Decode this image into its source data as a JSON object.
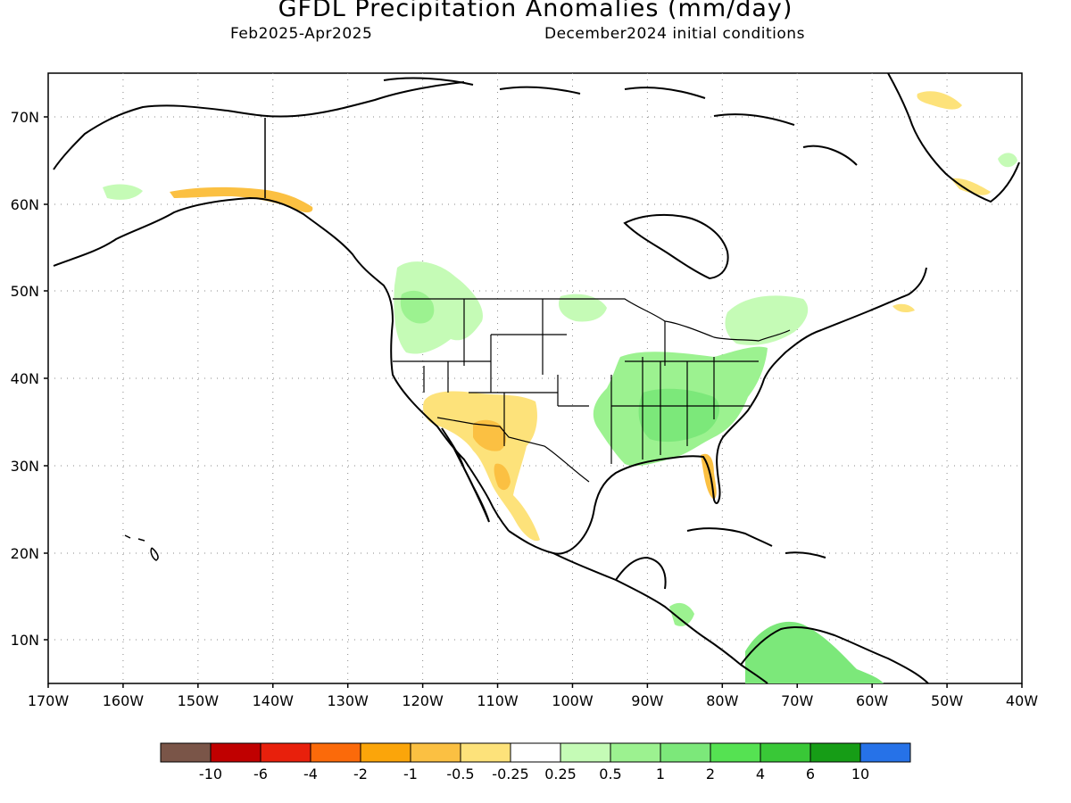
{
  "title": "GFDL Precipitation Anomalies (mm/day)",
  "period": "Feb2025-Apr2025",
  "init": "December2024 initial conditions",
  "lat_labels": [
    "70N",
    "60N",
    "50N",
    "40N",
    "30N",
    "20N",
    "10N"
  ],
  "lon_labels": [
    "170W",
    "160W",
    "150W",
    "140W",
    "130W",
    "120W",
    "110W",
    "100W",
    "90W",
    "80W",
    "70W",
    "60W",
    "50W",
    "40W"
  ],
  "legend": {
    "colors": [
      "#7a5548",
      "#c00000",
      "#e8200c",
      "#fb6a0a",
      "#fba50a",
      "#fbc042",
      "#fde27a",
      "#ffffff",
      "#c5fbb6",
      "#9cf290",
      "#7ce87a",
      "#55e252",
      "#39c837",
      "#169d16",
      "#2672e8"
    ],
    "labels": [
      "-10",
      "-6",
      "-4",
      "-2",
      "-1",
      "-0.5",
      "-0.25",
      "0.25",
      "0.5",
      "1",
      "2",
      "4",
      "6",
      "10"
    ]
  }
}
